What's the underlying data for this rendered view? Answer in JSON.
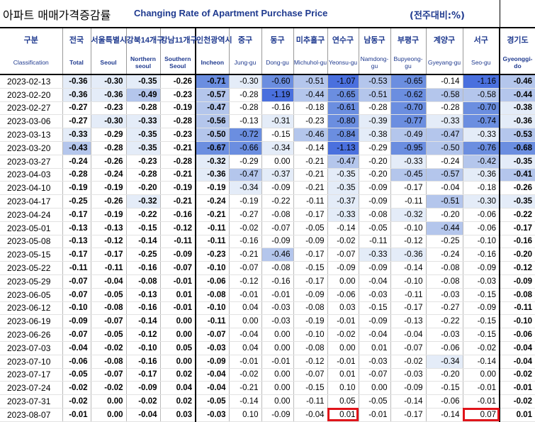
{
  "header": {
    "title_kr": "아파트 매매가격증감률",
    "title_en": "Changing Rate of Apartment Purchase Price",
    "unit": "(전주대비:%)"
  },
  "columns": [
    {
      "kr": "구분",
      "en": "Classification"
    },
    {
      "kr": "전국",
      "en": "Total"
    },
    {
      "kr": "서울특별시",
      "en": "Seoul"
    },
    {
      "kr": "강북14개구",
      "en": "Northern seoul"
    },
    {
      "kr": "강남11개구",
      "en": "Southern Seoul"
    },
    {
      "kr": "인천광역시",
      "en": "Incheon"
    },
    {
      "kr": "중구",
      "en": "Jung-gu"
    },
    {
      "kr": "동구",
      "en": "Dong-gu"
    },
    {
      "kr": "미추홀구",
      "en": "Michuhol-gu"
    },
    {
      "kr": "연수구",
      "en": "Yeonsu-gu"
    },
    {
      "kr": "남동구",
      "en": "Namdong-gu"
    },
    {
      "kr": "부평구",
      "en": "Bupyeong-gu"
    },
    {
      "kr": "계양구",
      "en": "Gyeyang-gu"
    },
    {
      "kr": "서구",
      "en": "Seo-gu"
    },
    {
      "kr": "경기도",
      "en": "Gyeonggi-do"
    }
  ],
  "rows": [
    {
      "date": "2023-02-13",
      "v": [
        "-0.36",
        "-0.30",
        "-0.35",
        "-0.26",
        "-0.71",
        "-0.30",
        "-0.60",
        "-0.51",
        "-1.07",
        "-0.53",
        "-0.65",
        "-0.14",
        "-1.16",
        "-0.46"
      ]
    },
    {
      "date": "2023-02-20",
      "v": [
        "-0.36",
        "-0.36",
        "-0.49",
        "-0.23",
        "-0.57",
        "-0.28",
        "-1.19",
        "-0.44",
        "-0.65",
        "-0.51",
        "-0.62",
        "-0.58",
        "-0.58",
        "-0.44"
      ]
    },
    {
      "date": "2023-02-27",
      "v": [
        "-0.27",
        "-0.23",
        "-0.28",
        "-0.19",
        "-0.47",
        "-0.28",
        "-0.16",
        "-0.18",
        "-0.61",
        "-0.28",
        "-0.70",
        "-0.28",
        "-0.70",
        "-0.38"
      ]
    },
    {
      "date": "2023-03-06",
      "v": [
        "-0.27",
        "-0.30",
        "-0.33",
        "-0.28",
        "-0.56",
        "-0.13",
        "-0.31",
        "-0.23",
        "-0.80",
        "-0.39",
        "-0.77",
        "-0.33",
        "-0.74",
        "-0.36"
      ]
    },
    {
      "date": "2023-03-13",
      "v": [
        "-0.33",
        "-0.29",
        "-0.35",
        "-0.23",
        "-0.50",
        "-0.72",
        "-0.15",
        "-0.46",
        "-0.84",
        "-0.38",
        "-0.49",
        "-0.47",
        "-0.33",
        "-0.53"
      ]
    },
    {
      "date": "2023-03-20",
      "v": [
        "-0.43",
        "-0.28",
        "-0.35",
        "-0.21",
        "-0.67",
        "-0.66",
        "-0.34",
        "-0.14",
        "-1.13",
        "-0.29",
        "-0.95",
        "-0.50",
        "-0.76",
        "-0.68"
      ]
    },
    {
      "date": "2023-03-27",
      "v": [
        "-0.24",
        "-0.26",
        "-0.23",
        "-0.28",
        "-0.32",
        "-0.29",
        "0.00",
        "-0.21",
        "-0.47",
        "-0.20",
        "-0.33",
        "-0.24",
        "-0.42",
        "-0.35"
      ]
    },
    {
      "date": "2023-04-03",
      "v": [
        "-0.28",
        "-0.24",
        "-0.28",
        "-0.21",
        "-0.36",
        "-0.47",
        "-0.37",
        "-0.21",
        "-0.35",
        "-0.20",
        "-0.45",
        "-0.57",
        "-0.36",
        "-0.41"
      ]
    },
    {
      "date": "2023-04-10",
      "v": [
        "-0.19",
        "-0.19",
        "-0.20",
        "-0.19",
        "-0.19",
        "-0.34",
        "-0.09",
        "-0.21",
        "-0.35",
        "-0.09",
        "-0.17",
        "-0.04",
        "-0.18",
        "-0.26"
      ]
    },
    {
      "date": "2023-04-17",
      "v": [
        "-0.25",
        "-0.26",
        "-0.32",
        "-0.21",
        "-0.24",
        "-0.19",
        "-0.22",
        "-0.11",
        "-0.37",
        "-0.09",
        "-0.11",
        "-0.51",
        "-0.30",
        "-0.35"
      ]
    },
    {
      "date": "2023-04-24",
      "v": [
        "-0.17",
        "-0.19",
        "-0.22",
        "-0.16",
        "-0.21",
        "-0.27",
        "-0.08",
        "-0.17",
        "-0.33",
        "-0.08",
        "-0.32",
        "-0.20",
        "-0.06",
        "-0.22"
      ]
    },
    {
      "date": "2023-05-01",
      "v": [
        "-0.13",
        "-0.13",
        "-0.15",
        "-0.12",
        "-0.11",
        "-0.02",
        "-0.07",
        "-0.05",
        "-0.14",
        "-0.05",
        "-0.10",
        "-0.44",
        "-0.06",
        "-0.17"
      ]
    },
    {
      "date": "2023-05-08",
      "v": [
        "-0.13",
        "-0.12",
        "-0.14",
        "-0.11",
        "-0.11",
        "-0.16",
        "-0.09",
        "-0.09",
        "-0.02",
        "-0.11",
        "-0.12",
        "-0.25",
        "-0.10",
        "-0.16"
      ]
    },
    {
      "date": "2023-05-15",
      "v": [
        "-0.17",
        "-0.17",
        "-0.25",
        "-0.09",
        "-0.23",
        "-0.21",
        "-0.46",
        "-0.17",
        "-0.07",
        "-0.33",
        "-0.36",
        "-0.24",
        "-0.16",
        "-0.20"
      ]
    },
    {
      "date": "2023-05-22",
      "v": [
        "-0.11",
        "-0.11",
        "-0.16",
        "-0.07",
        "-0.10",
        "-0.07",
        "-0.08",
        "-0.15",
        "-0.09",
        "-0.09",
        "-0.14",
        "-0.08",
        "-0.09",
        "-0.12"
      ]
    },
    {
      "date": "2023-05-29",
      "v": [
        "-0.07",
        "-0.04",
        "-0.08",
        "-0.01",
        "-0.06",
        "-0.12",
        "-0.16",
        "-0.17",
        "0.00",
        "-0.04",
        "-0.10",
        "-0.08",
        "-0.03",
        "-0.09"
      ]
    },
    {
      "date": "2023-06-05",
      "v": [
        "-0.07",
        "-0.05",
        "-0.13",
        "0.01",
        "-0.08",
        "-0.01",
        "-0.01",
        "-0.09",
        "-0.06",
        "-0.03",
        "-0.11",
        "-0.03",
        "-0.15",
        "-0.08"
      ]
    },
    {
      "date": "2023-06-12",
      "v": [
        "-0.10",
        "-0.08",
        "-0.16",
        "-0.01",
        "-0.10",
        "0.04",
        "-0.03",
        "-0.08",
        "0.03",
        "-0.15",
        "-0.17",
        "-0.27",
        "-0.09",
        "-0.11"
      ]
    },
    {
      "date": "2023-06-19",
      "v": [
        "-0.09",
        "-0.07",
        "-0.14",
        "0.00",
        "-0.11",
        "0.00",
        "-0.03",
        "-0.19",
        "-0.01",
        "-0.09",
        "-0.13",
        "-0.22",
        "-0.15",
        "-0.10"
      ]
    },
    {
      "date": "2023-06-26",
      "v": [
        "-0.07",
        "-0.05",
        "-0.12",
        "0.00",
        "-0.07",
        "-0.04",
        "0.00",
        "-0.10",
        "-0.02",
        "-0.04",
        "-0.04",
        "-0.03",
        "-0.15",
        "-0.06"
      ]
    },
    {
      "date": "2023-07-03",
      "v": [
        "-0.04",
        "-0.02",
        "-0.10",
        "0.05",
        "-0.03",
        "0.04",
        "0.00",
        "-0.08",
        "0.00",
        "0.01",
        "-0.07",
        "-0.06",
        "-0.02",
        "-0.04"
      ]
    },
    {
      "date": "2023-07-10",
      "v": [
        "-0.06",
        "-0.08",
        "-0.16",
        "0.00",
        "-0.09",
        "-0.01",
        "-0.01",
        "-0.12",
        "-0.01",
        "-0.03",
        "-0.02",
        "-0.34",
        "-0.14",
        "-0.04"
      ]
    },
    {
      "date": "2023-07-17",
      "v": [
        "-0.05",
        "-0.07",
        "-0.17",
        "0.02",
        "-0.04",
        "-0.02",
        "0.00",
        "-0.07",
        "0.01",
        "-0.07",
        "-0.03",
        "-0.20",
        "0.00",
        "-0.02"
      ]
    },
    {
      "date": "2023-07-24",
      "v": [
        "-0.02",
        "-0.02",
        "-0.09",
        "0.04",
        "-0.04",
        "-0.21",
        "0.00",
        "-0.15",
        "0.10",
        "0.00",
        "-0.09",
        "-0.15",
        "-0.01",
        "-0.01"
      ]
    },
    {
      "date": "2023-07-31",
      "v": [
        "-0.02",
        "0.00",
        "-0.02",
        "0.02",
        "-0.05",
        "-0.14",
        "0.00",
        "-0.11",
        "0.05",
        "-0.05",
        "-0.14",
        "-0.06",
        "-0.01",
        "-0.02"
      ]
    },
    {
      "date": "2023-08-07",
      "v": [
        "-0.01",
        "0.00",
        "-0.04",
        "0.03",
        "-0.03",
        "0.10",
        "-0.09",
        "-0.04",
        "0.01",
        "-0.01",
        "-0.17",
        "-0.14",
        "0.07",
        "0.01"
      ]
    }
  ],
  "highlighted_cells": [
    {
      "date": "2023-08-07",
      "column": "Yeonsu-gu",
      "value": "0.01"
    },
    {
      "date": "2023-08-07",
      "column": "Seo-gu",
      "value": "0.07"
    }
  ],
  "colors": {
    "title_text": "#1f3a8f",
    "highlight_border": "#e0141a",
    "shade_light": "#e4ecf8",
    "shade_mid": "#b4c6ec",
    "shade_dark": "#6b8ee0",
    "shade_darkest": "#4a70de"
  }
}
